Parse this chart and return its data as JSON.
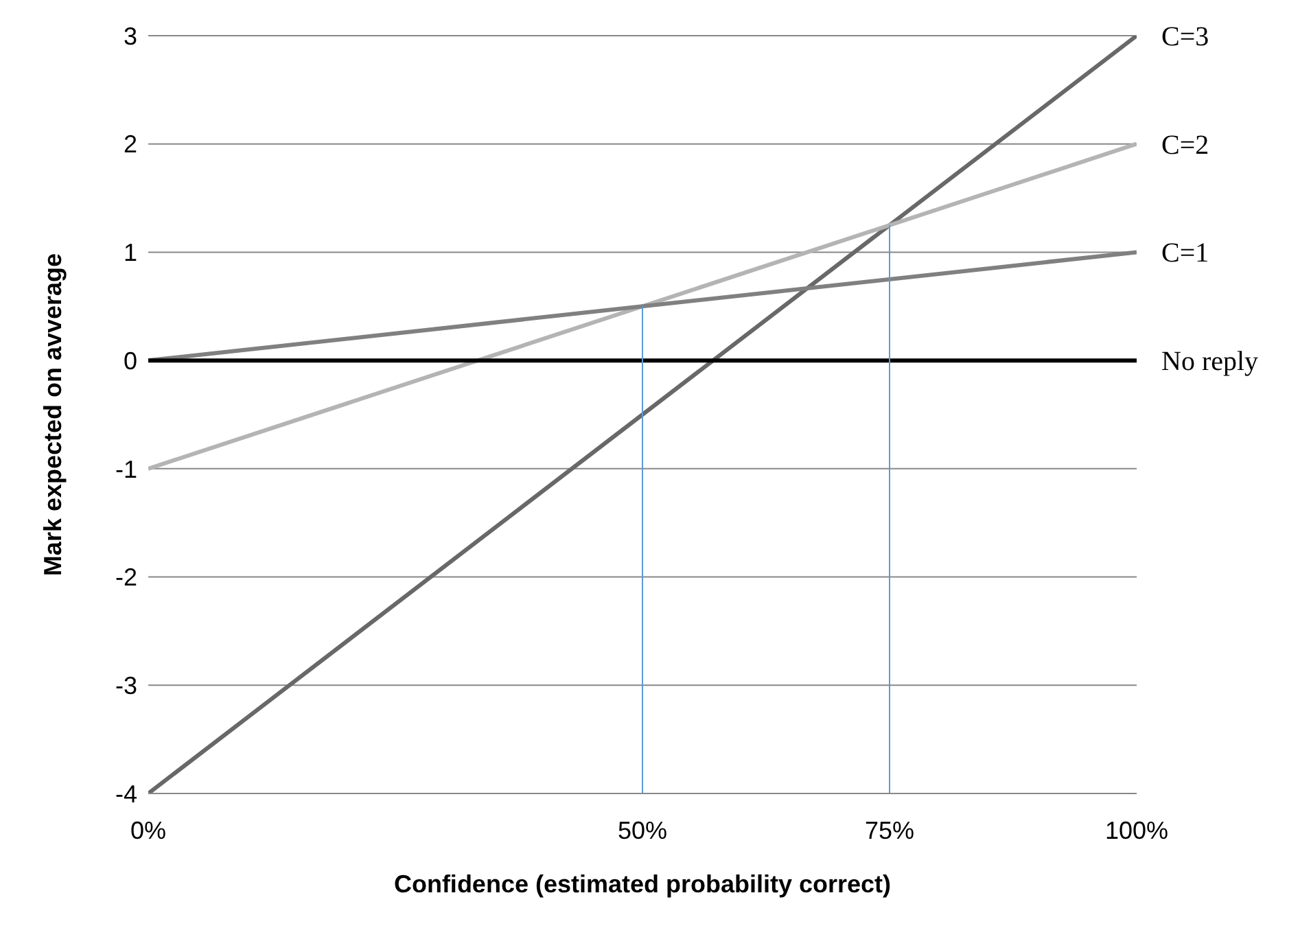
{
  "chart_data": {
    "type": "line",
    "xlabel": "Confidence (estimated probability correct)",
    "ylabel": "Mark expected on avverage",
    "xlim": [
      0,
      1
    ],
    "xticks": [
      {
        "value": 0,
        "label": "0%"
      },
      {
        "value": 0.5,
        "label": "50%"
      },
      {
        "value": 0.75,
        "label": "75%"
      },
      {
        "value": 1,
        "label": "100%"
      }
    ],
    "ylim": [
      -4,
      3
    ],
    "yticks": [
      -4,
      -3,
      -2,
      -1,
      0,
      1,
      2,
      3
    ],
    "grid": "y",
    "marker": "none",
    "line_style": "solid",
    "series": [
      {
        "name": "C=3",
        "color": "#686868",
        "x": [
          0,
          1
        ],
        "values": [
          -4,
          3
        ]
      },
      {
        "name": "C=2",
        "color": "#b4b4b4",
        "x": [
          0,
          1
        ],
        "values": [
          -1,
          2
        ]
      },
      {
        "name": "C=1",
        "color": "#808080",
        "x": [
          0,
          1
        ],
        "values": [
          0,
          1
        ]
      },
      {
        "name": "No reply",
        "color": "#000000",
        "x": [
          0,
          1
        ],
        "values": [
          0,
          0
        ]
      },
      {
        "color": "#5b9bd5",
        "x": [
          0.5,
          0.5
        ],
        "values": [
          -4,
          0.5
        ]
      },
      {
        "color": "#5b9bd5",
        "x": [
          0.75,
          0.75
        ],
        "values": [
          -4,
          1.25
        ]
      }
    ]
  }
}
